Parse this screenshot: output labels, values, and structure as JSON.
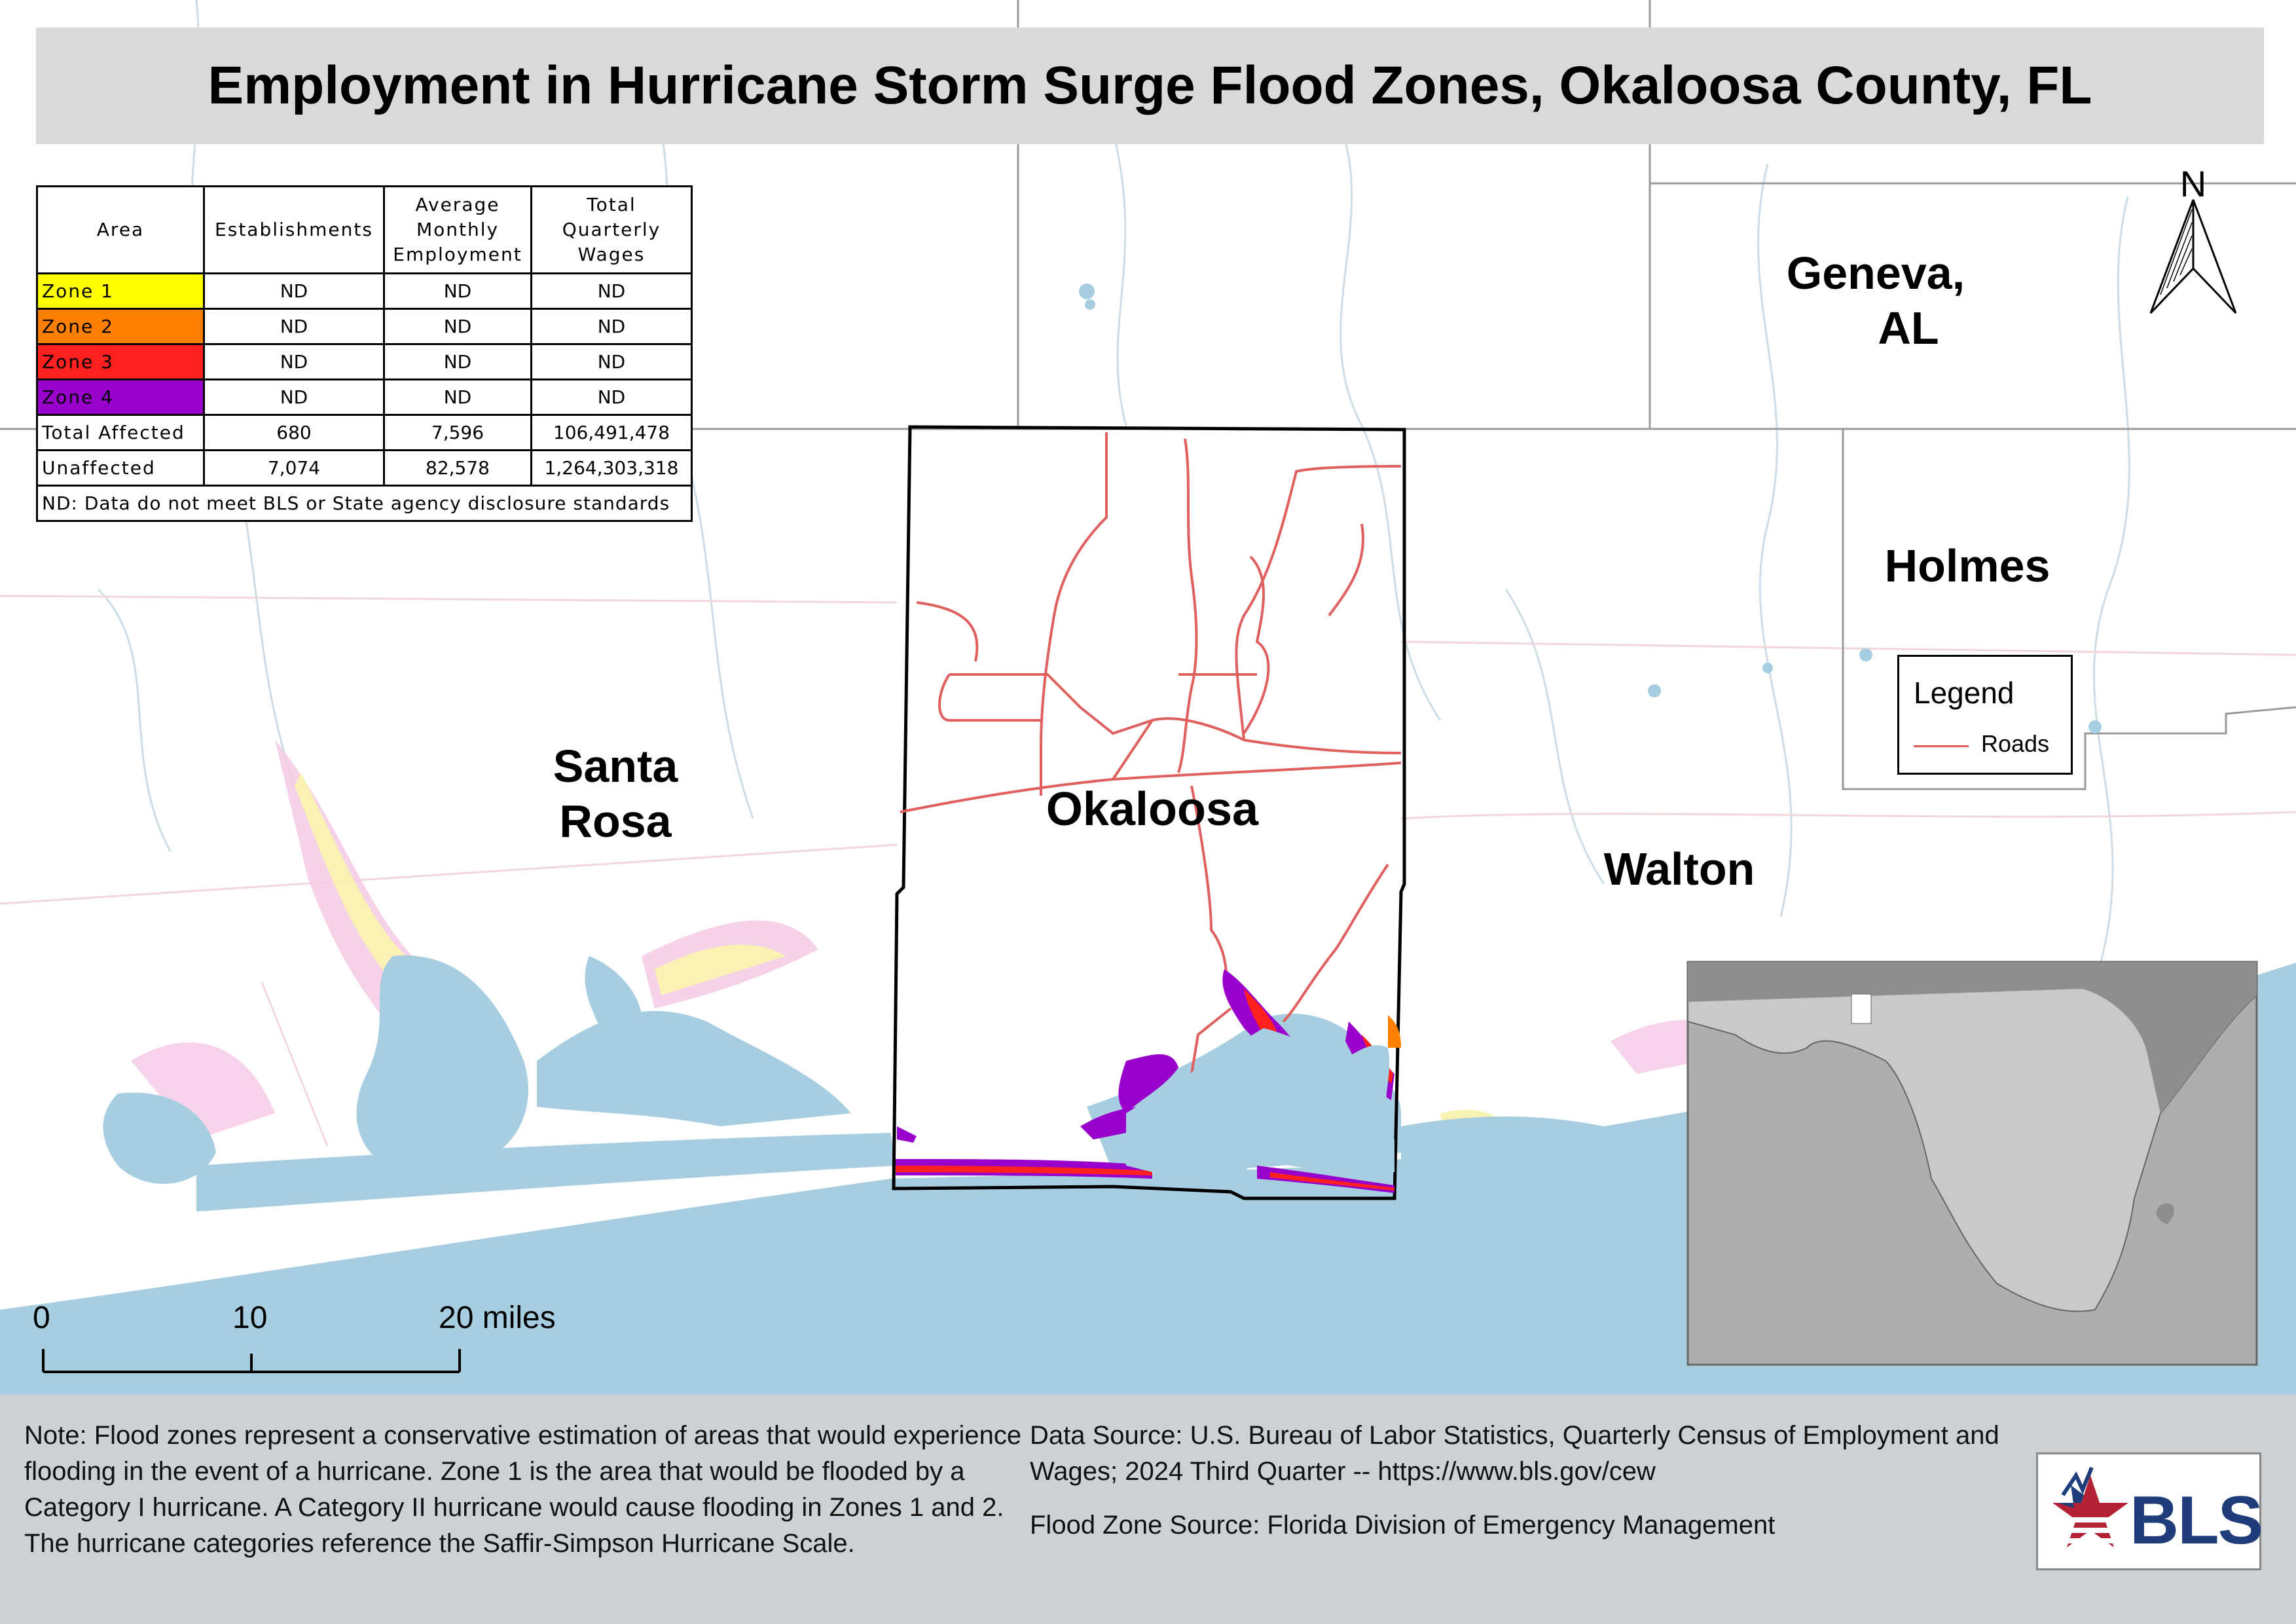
{
  "title": "Employment in Hurricane Storm Surge Flood Zones, Okaloosa County, FL",
  "table": {
    "headers": [
      "Area",
      "Establishments",
      "Average Monthly Employment",
      "Total Quarterly Wages"
    ],
    "rows": [
      {
        "area": "Zone 1",
        "color": "#ffff00",
        "establishments": "ND",
        "employment": "ND",
        "wages": "ND"
      },
      {
        "area": "Zone 2",
        "color": "#ff8000",
        "establishments": "ND",
        "employment": "ND",
        "wages": "ND"
      },
      {
        "area": "Zone 3",
        "color": "#ff2020",
        "establishments": "ND",
        "employment": "ND",
        "wages": "ND"
      },
      {
        "area": "Zone 4",
        "color": "#9900cc",
        "establishments": "ND",
        "employment": "ND",
        "wages": "ND"
      },
      {
        "area": "Total Affected",
        "color": "#ffffff",
        "establishments": "680",
        "employment": "7,596",
        "wages": "106,491,478"
      },
      {
        "area": "Unaffected",
        "color": "#ffffff",
        "establishments": "7,074",
        "employment": "82,578",
        "wages": "1,264,303,318"
      }
    ],
    "footnote": "ND: Data do not meet BLS or State agency disclosure standards"
  },
  "map_labels": {
    "geneva_line1": "Geneva,",
    "geneva_line2": "AL",
    "holmes": "Holmes",
    "santa_rosa_line1": "Santa",
    "santa_rosa_line2": "Rosa",
    "okaloosa": "Okaloosa",
    "walton": "Walton"
  },
  "north_arrow": {
    "label": "N"
  },
  "legend": {
    "title": "Legend",
    "items": [
      {
        "label": "Roads",
        "color": "#e06060"
      }
    ]
  },
  "scale_bar": {
    "ticks": [
      "0",
      "10",
      "20 miles"
    ]
  },
  "footer": {
    "note": "Note: Flood zones represent a conservative estimation of areas that would experience flooding in the event of a hurricane. Zone 1 is the area that would be flooded by a Category I hurricane. A Category II hurricane would cause flooding in Zones 1 and 2. The hurricane categories reference the Saffir-Simpson Hurricane Scale.",
    "data_source": "Data Source: U.S. Bureau of Labor Statistics, Quarterly Census of Employment and Wages; 2024 Third Quarter -- https://www.bls.gov/cew",
    "flood_source": "Flood Zone Source: Florida Division of Emergency Management"
  },
  "logo": {
    "text": "BLS"
  },
  "colors": {
    "water": "#a7cde0",
    "county_border": "#000000",
    "roads": "#e06060",
    "title_bg": "#d9d9d9",
    "footer_bg": "#ccd1d6"
  }
}
